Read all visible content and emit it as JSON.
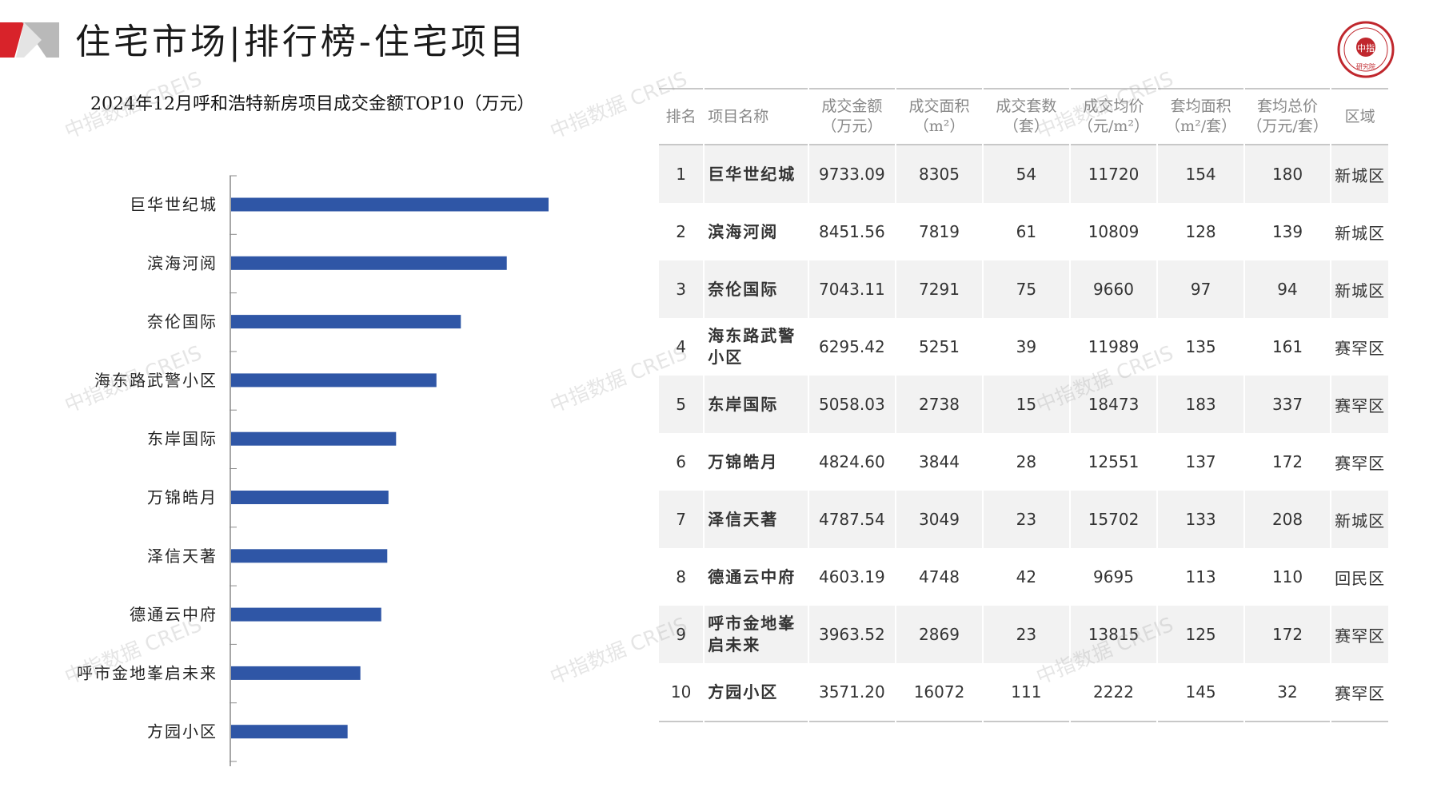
{
  "header": {
    "title": "住宅市场|排行榜-住宅项目",
    "seal_text": "中指研究院"
  },
  "colors": {
    "bar": "#2f56a6",
    "accent_red": "#d8232a",
    "gray": "#9a9a9a"
  },
  "watermark": "中指数据 CREIS",
  "chart_data": {
    "type": "bar",
    "orientation": "horizontal",
    "title": "2024年12月呼和浩特新房项目成交金额TOP10（万元）",
    "categories": [
      "巨华世纪城",
      "滨海河阅",
      "奈伦国际",
      "海东路武警小区",
      "东岸国际",
      "万锦皓月",
      "泽信天著",
      "德通云中府",
      "呼市金地峯启未来",
      "方园小区"
    ],
    "values": [
      9733.09,
      8451.56,
      7043.11,
      6295.42,
      5058.03,
      4824.6,
      4787.54,
      4603.19,
      3963.52,
      3571.2
    ],
    "xlim": [
      0,
      14000
    ],
    "grid": false,
    "legend": "none"
  },
  "table": {
    "headers": [
      "排名",
      "项目名称",
      "成交金额\n（万元）",
      "成交面积\n（m²）",
      "成交套数\n（套）",
      "成交均价\n（元/m²）",
      "套均面积\n（m²/套）",
      "套均总价\n（万元/套）",
      "区域"
    ],
    "rows": [
      [
        "1",
        "巨华世纪城",
        "9733.09",
        "8305",
        "54",
        "11720",
        "154",
        "180",
        "新城区"
      ],
      [
        "2",
        "滨海河阅",
        "8451.56",
        "7819",
        "61",
        "10809",
        "128",
        "139",
        "新城区"
      ],
      [
        "3",
        "奈伦国际",
        "7043.11",
        "7291",
        "75",
        "9660",
        "97",
        "94",
        "新城区"
      ],
      [
        "4",
        "海东路武警小区",
        "6295.42",
        "5251",
        "39",
        "11989",
        "135",
        "161",
        "赛罕区"
      ],
      [
        "5",
        "东岸国际",
        "5058.03",
        "2738",
        "15",
        "18473",
        "183",
        "337",
        "赛罕区"
      ],
      [
        "6",
        "万锦皓月",
        "4824.60",
        "3844",
        "28",
        "12551",
        "137",
        "172",
        "赛罕区"
      ],
      [
        "7",
        "泽信天著",
        "4787.54",
        "3049",
        "23",
        "15702",
        "133",
        "208",
        "新城区"
      ],
      [
        "8",
        "德通云中府",
        "4603.19",
        "4748",
        "42",
        "9695",
        "113",
        "110",
        "回民区"
      ],
      [
        "9",
        "呼市金地峯启未来",
        "3963.52",
        "2869",
        "23",
        "13815",
        "125",
        "172",
        "赛罕区"
      ],
      [
        "10",
        "方园小区",
        "3571.20",
        "16072",
        "111",
        "2222",
        "145",
        "32",
        "赛罕区"
      ]
    ]
  }
}
